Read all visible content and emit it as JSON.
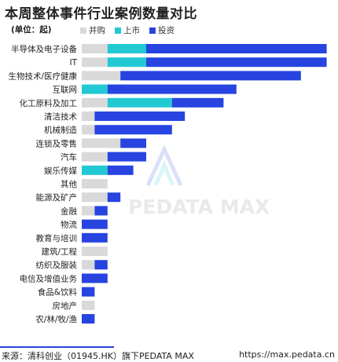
{
  "header": {
    "title": "本周整体事件行业案例数量对比",
    "unit": "(单位：起)"
  },
  "footer": {
    "source": "来源：清科创业（01945.HK）旗下PEDATA MAX",
    "url": "https://max.pedata.cn"
  },
  "watermark": "PEDATA MAX",
  "colors": {
    "merger": "#d9d9d9",
    "ipo": "#22c9d3",
    "investment": "#2743e0"
  },
  "chart_data": {
    "type": "bar",
    "orientation": "horizontal",
    "stacked": true,
    "title": "本周整体事件行业案例数量对比",
    "unit": "(单位：起)",
    "legend_position": "top",
    "grid": false,
    "categories": [
      "半导体及电子设备",
      "IT",
      "生物技术/医疗健康",
      "互联网",
      "化工原料及加工",
      "清洁技术",
      "机械制造",
      "连锁及零售",
      "汽车",
      "娱乐传媒",
      "其他",
      "能源及矿产",
      "金融",
      "物流",
      "教育与培训",
      "建筑/工程",
      "纺织及服装",
      "电信及增值业务",
      "食品&饮料",
      "房地产",
      "农/林/牧/渔"
    ],
    "series": [
      {
        "name": "并购",
        "color": "#d9d9d9",
        "values": [
          2,
          2,
          3,
          0,
          2,
          1,
          1,
          3,
          2,
          0,
          2,
          2,
          1,
          0,
          0,
          2,
          1,
          0,
          0,
          1,
          0
        ]
      },
      {
        "name": "上市",
        "color": "#22c9d3",
        "values": [
          3,
          3,
          0,
          2,
          5,
          0,
          0,
          0,
          0,
          2,
          0,
          0,
          0,
          0,
          0,
          0,
          0,
          0,
          0,
          0,
          0
        ]
      },
      {
        "name": "投资",
        "color": "#2743e0",
        "values": [
          14,
          14,
          14,
          10,
          4,
          7,
          6,
          2,
          3,
          2,
          0,
          1,
          1,
          2,
          2,
          0,
          1,
          2,
          1,
          0,
          1
        ]
      }
    ]
  }
}
